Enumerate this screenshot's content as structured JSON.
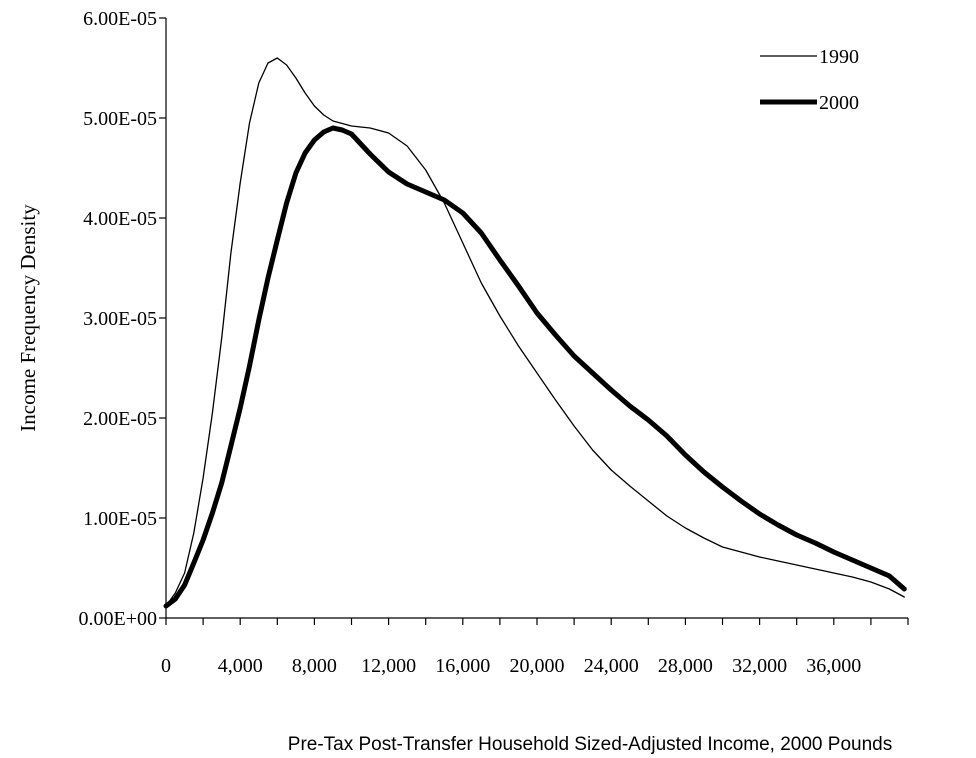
{
  "chart_data": {
    "type": "line",
    "title": "",
    "xlabel": "Pre-Tax Post-Transfer Household Sized-Adjusted Income, 2000 Pounds",
    "ylabel": "Income Frequency Density",
    "xlim": [
      0,
      40000
    ],
    "ylim": [
      0,
      6e-05
    ],
    "x_ticks": [
      0,
      4000,
      8000,
      12000,
      16000,
      20000,
      24000,
      28000,
      32000,
      36000
    ],
    "x_tick_labels": [
      "0",
      "4,000",
      "8,000",
      "12,000",
      "16,000",
      "20,000",
      "24,000",
      "28,000",
      "32,000",
      "36,000"
    ],
    "y_ticks": [
      0,
      1e-05,
      2e-05,
      3e-05,
      4e-05,
      5e-05,
      6e-05
    ],
    "y_tick_labels": [
      "0.00E+00",
      "1.00E-05",
      "2.00E-05",
      "3.00E-05",
      "4.00E-05",
      "5.00E-05",
      "6.00E-05"
    ],
    "grid": false,
    "legend_position": "top-right",
    "series": [
      {
        "name": "1990",
        "color": "#000000",
        "style": "thin",
        "x": [
          0,
          500,
          1000,
          1500,
          2000,
          2500,
          3000,
          3500,
          4000,
          4500,
          5000,
          5500,
          6000,
          6500,
          7000,
          7500,
          8000,
          8500,
          9000,
          10000,
          11000,
          12000,
          13000,
          14000,
          15000,
          16000,
          17000,
          18000,
          19000,
          20000,
          21000,
          22000,
          23000,
          24000,
          25000,
          26000,
          27000,
          28000,
          29000,
          30000,
          31000,
          32000,
          33000,
          34000,
          35000,
          36000,
          37000,
          38000,
          39000,
          39800
        ],
        "y": [
          1.2e-06,
          2.5e-06,
          4.5e-06,
          8.5e-06,
          1.4e-05,
          2.05e-05,
          2.8e-05,
          3.65e-05,
          4.35e-05,
          4.95e-05,
          5.35e-05,
          5.55e-05,
          5.6e-05,
          5.53e-05,
          5.4e-05,
          5.25e-05,
          5.12e-05,
          5.03e-05,
          4.97e-05,
          4.92e-05,
          4.9e-05,
          4.85e-05,
          4.72e-05,
          4.48e-05,
          4.15e-05,
          3.75e-05,
          3.35e-05,
          3.02e-05,
          2.72e-05,
          2.45e-05,
          2.18e-05,
          1.92e-05,
          1.68e-05,
          1.48e-05,
          1.32e-05,
          1.17e-05,
          1.02e-05,
          9e-06,
          8e-06,
          7.1e-06,
          6.6e-06,
          6.1e-06,
          5.7e-06,
          5.3e-06,
          4.9e-06,
          4.5e-06,
          4.1e-06,
          3.6e-06,
          2.9e-06,
          2.1e-06
        ]
      },
      {
        "name": "2000",
        "color": "#000000",
        "style": "thick",
        "x": [
          0,
          500,
          1000,
          1500,
          2000,
          2500,
          3000,
          3500,
          4000,
          4500,
          5000,
          5500,
          6000,
          6500,
          7000,
          7500,
          8000,
          8500,
          9000,
          9500,
          10000,
          11000,
          12000,
          13000,
          14000,
          15000,
          16000,
          17000,
          18000,
          19000,
          20000,
          21000,
          22000,
          23000,
          24000,
          25000,
          26000,
          27000,
          28000,
          29000,
          30000,
          31000,
          32000,
          33000,
          34000,
          35000,
          36000,
          37000,
          38000,
          39000,
          39800
        ],
        "y": [
          1.2e-06,
          1.9e-06,
          3.3e-06,
          5.5e-06,
          7.8e-06,
          1.05e-05,
          1.35e-05,
          1.72e-05,
          2.1e-05,
          2.52e-05,
          2.98e-05,
          3.4e-05,
          3.78e-05,
          4.15e-05,
          4.45e-05,
          4.65e-05,
          4.78e-05,
          4.86e-05,
          4.9e-05,
          4.88e-05,
          4.84e-05,
          4.64e-05,
          4.46e-05,
          4.34e-05,
          4.26e-05,
          4.18e-05,
          4.05e-05,
          3.85e-05,
          3.58e-05,
          3.32e-05,
          3.05e-05,
          2.83e-05,
          2.62e-05,
          2.45e-05,
          2.28e-05,
          2.12e-05,
          1.98e-05,
          1.82e-05,
          1.63e-05,
          1.46e-05,
          1.31e-05,
          1.17e-05,
          1.04e-05,
          9.3e-06,
          8.3e-06,
          7.5e-06,
          6.6e-06,
          5.8e-06,
          5e-06,
          4.2e-06,
          2.9e-06
        ]
      }
    ]
  }
}
